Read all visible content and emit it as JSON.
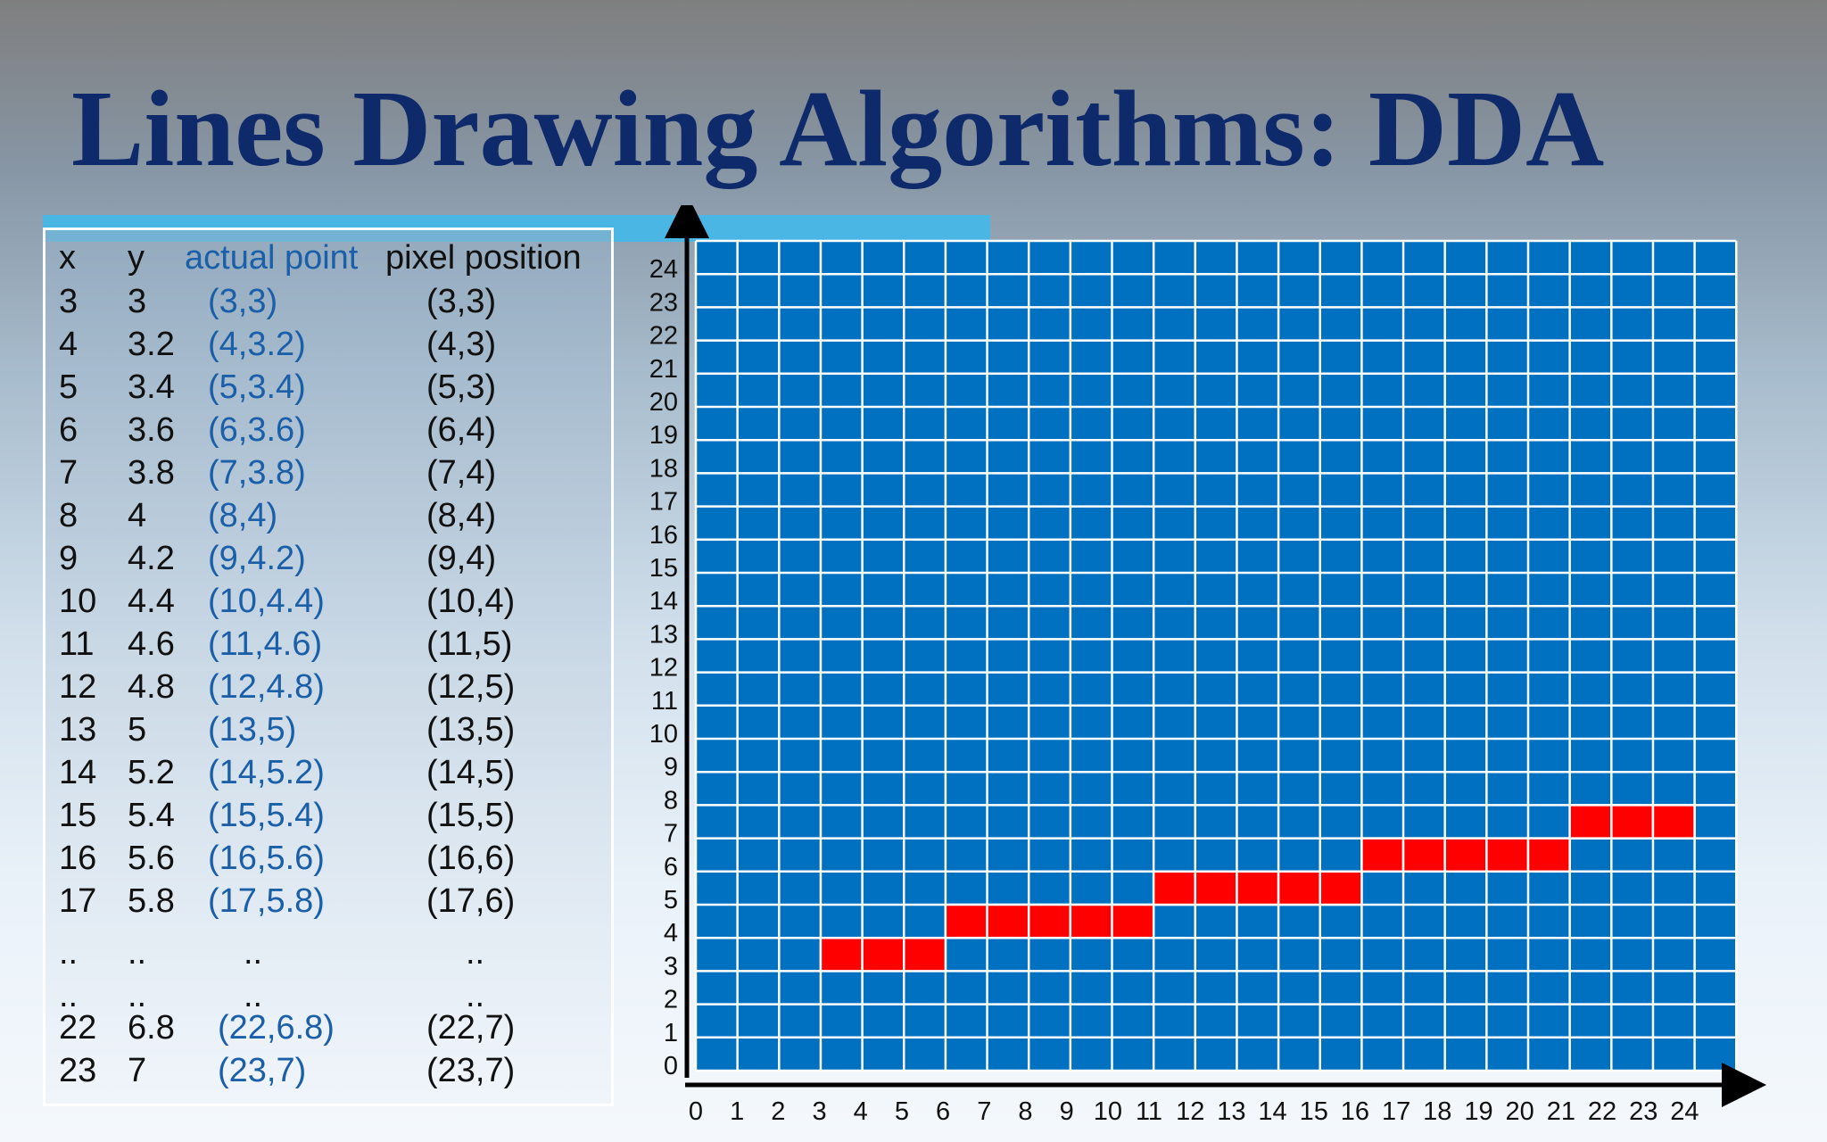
{
  "slide": {
    "title": "Lines Drawing Algorithms: DDA"
  },
  "table": {
    "headers": {
      "x": "x",
      "y": "y",
      "actual": "actual point",
      "pixel": "pixel position"
    },
    "rows": [
      {
        "x": "3",
        "y": "3",
        "actual": "(3,3)",
        "pixel": "(3,3)"
      },
      {
        "x": "4",
        "y": "3.2",
        "actual": "(4,3.2)",
        "pixel": "(4,3)"
      },
      {
        "x": "5",
        "y": "3.4",
        "actual": "(5,3.4)",
        "pixel": "(5,3)"
      },
      {
        "x": "6",
        "y": "3.6",
        "actual": "(6,3.6)",
        "pixel": "(6,4)"
      },
      {
        "x": "7",
        "y": "3.8",
        "actual": "(7,3.8)",
        "pixel": "(7,4)"
      },
      {
        "x": "8",
        "y": "4",
        "actual": "(8,4)",
        "pixel": "(8,4)"
      },
      {
        "x": "9",
        "y": "4.2",
        "actual": "(9,4.2)",
        "pixel": "(9,4)"
      },
      {
        "x": "10",
        "y": "4.4",
        "actual": "(10,4.4)",
        "pixel": "(10,4)"
      },
      {
        "x": "11",
        "y": "4.6",
        "actual": "(11,4.6)",
        "pixel": "(11,5)"
      },
      {
        "x": "12",
        "y": "4.8",
        "actual": "(12,4.8)",
        "pixel": "(12,5)"
      },
      {
        "x": "13",
        "y": "5",
        "actual": "(13,5)",
        "pixel": "(13,5)"
      },
      {
        "x": "14",
        "y": "5.2",
        "actual": "(14,5.2)",
        "pixel": "(14,5)"
      },
      {
        "x": "15",
        "y": "5.4",
        "actual": "(15,5.4)",
        "pixel": "(15,5)"
      },
      {
        "x": "16",
        "y": "5.6",
        "actual": "(16,5.6)",
        "pixel": "(16,6)"
      },
      {
        "x": "17",
        "y": "5.8",
        "actual": "(17,5.8)",
        "pixel": "(17,6)"
      },
      {
        "x": "..",
        "y": "..",
        "actual": "..",
        "pixel": ".."
      },
      {
        "x": "..",
        "y": "..",
        "actual": "..",
        "pixel": ".."
      },
      {
        "x": "22",
        "y": "6.8",
        "actual": "(22,6.8)",
        "pixel": "(22,7)"
      },
      {
        "x": "23",
        "y": "7",
        "actual": "(23,7)",
        "pixel": "(23,7)"
      }
    ]
  },
  "grid": {
    "x_ticks": [
      "0",
      "1",
      "2",
      "3",
      "4",
      "5",
      "6",
      "7",
      "8",
      "9",
      "10",
      "11",
      "12",
      "13",
      "14",
      "15",
      "16",
      "17",
      "18",
      "19",
      "20",
      "21",
      "22",
      "23",
      "24"
    ],
    "y_ticks": [
      "0",
      "1",
      "2",
      "3",
      "4",
      "5",
      "6",
      "7",
      "8",
      "9",
      "10",
      "11",
      "12",
      "13",
      "14",
      "15",
      "16",
      "17",
      "18",
      "19",
      "20",
      "21",
      "22",
      "23",
      "24"
    ],
    "cell_color": "#0070c0",
    "line_color": "#ffffff",
    "pixel_color": "#ff0000",
    "lit_pixels": [
      [
        3,
        3
      ],
      [
        4,
        3
      ],
      [
        5,
        3
      ],
      [
        6,
        4
      ],
      [
        7,
        4
      ],
      [
        8,
        4
      ],
      [
        9,
        4
      ],
      [
        10,
        4
      ],
      [
        11,
        5
      ],
      [
        12,
        5
      ],
      [
        13,
        5
      ],
      [
        14,
        5
      ],
      [
        15,
        5
      ],
      [
        16,
        6
      ],
      [
        17,
        6
      ],
      [
        18,
        6
      ],
      [
        19,
        6
      ],
      [
        20,
        6
      ],
      [
        21,
        7
      ],
      [
        22,
        7
      ],
      [
        23,
        7
      ]
    ]
  }
}
